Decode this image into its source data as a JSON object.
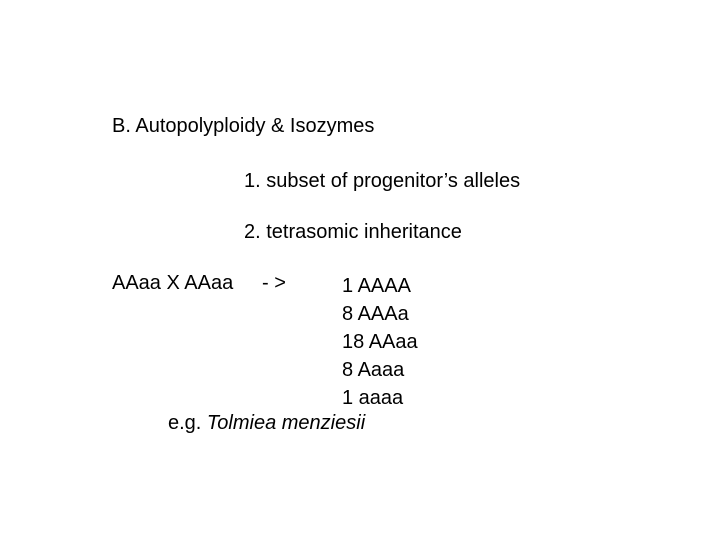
{
  "text_color": "#000000",
  "background_color": "#ffffff",
  "font_size_pt": 15,
  "heading": "B. Autopolyploidy & Isozymes",
  "sub1": "1. subset of progenitor’s alleles",
  "sub2": "2. tetrasomic inheritance",
  "cross": {
    "parents": "AAaa X AAaa",
    "arrow": "- >",
    "results": [
      "1 AAAA",
      "8 AAAa",
      "18 AAaa",
      "8 Aaaa",
      "1 aaaa"
    ]
  },
  "example_prefix": "e.g. ",
  "example_species": "Tolmiea menziesii"
}
